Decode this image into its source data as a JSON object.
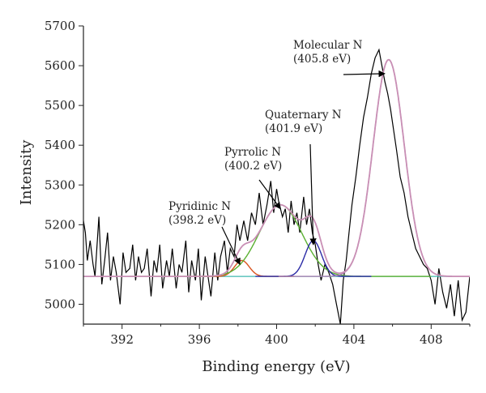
{
  "chart_data": {
    "type": "line",
    "title": "",
    "xlabel": "Binding energy (eV)",
    "ylabel": "Intensity",
    "xlim": [
      390,
      410
    ],
    "ylim": [
      4950,
      5700
    ],
    "x_ticks": [
      392,
      396,
      400,
      404,
      408
    ],
    "y_ticks": [
      5000,
      5100,
      5200,
      5300,
      5400,
      5500,
      5600,
      5700
    ],
    "grid": false,
    "legend": "none",
    "baseline": 5070,
    "raw_series": {
      "color": "#000000",
      "x": [
        390,
        390.1,
        390.2,
        390.35,
        390.5,
        390.6,
        390.8,
        390.95,
        391.1,
        391.25,
        391.4,
        391.55,
        391.7,
        391.9,
        392.05,
        392.2,
        392.4,
        392.55,
        392.7,
        392.85,
        393.0,
        393.15,
        393.3,
        393.5,
        393.65,
        393.8,
        393.95,
        394.1,
        394.3,
        394.45,
        394.6,
        394.8,
        394.95,
        395.1,
        395.3,
        395.45,
        395.6,
        395.8,
        395.95,
        396.1,
        396.3,
        396.45,
        396.6,
        396.8,
        396.95,
        397.1,
        397.3,
        397.45,
        397.6,
        397.8,
        397.95,
        398.1,
        398.3,
        398.5,
        398.7,
        398.9,
        399.1,
        399.3,
        399.5,
        399.7,
        399.85,
        400.0,
        400.1,
        400.3,
        400.45,
        400.6,
        400.75,
        400.9,
        401.05,
        401.2,
        401.4,
        401.55,
        401.7,
        401.85,
        402.0,
        402.15,
        402.3,
        402.5,
        402.7,
        402.9,
        403.1,
        403.3,
        403.45,
        403.6,
        403.75,
        403.9,
        404.1,
        404.3,
        404.5,
        404.7,
        404.9,
        405.1,
        405.3,
        405.45,
        405.6,
        405.75,
        405.9,
        406.05,
        406.2,
        406.4,
        406.6,
        406.8,
        407.0,
        407.2,
        407.4,
        407.6,
        407.8,
        408.0,
        408.2,
        408.4,
        408.6,
        408.8,
        409.0,
        409.2,
        409.4,
        409.6,
        409.8,
        410.0
      ],
      "y": [
        5210,
        5180,
        5110,
        5160,
        5100,
        5070,
        5220,
        5050,
        5110,
        5180,
        5060,
        5120,
        5080,
        5000,
        5130,
        5080,
        5090,
        5150,
        5060,
        5120,
        5080,
        5090,
        5140,
        5020,
        5110,
        5080,
        5150,
        5040,
        5110,
        5070,
        5140,
        5040,
        5100,
        5080,
        5160,
        5030,
        5110,
        5060,
        5140,
        5010,
        5120,
        5070,
        5020,
        5130,
        5060,
        5120,
        5160,
        5080,
        5140,
        5120,
        5200,
        5160,
        5210,
        5160,
        5230,
        5200,
        5280,
        5200,
        5250,
        5310,
        5230,
        5290,
        5260,
        5220,
        5240,
        5180,
        5260,
        5200,
        5230,
        5180,
        5270,
        5200,
        5240,
        5180,
        5150,
        5100,
        5060,
        5100,
        5080,
        5050,
        5000,
        4950,
        5060,
        5110,
        5180,
        5250,
        5320,
        5400,
        5470,
        5520,
        5580,
        5620,
        5640,
        5600,
        5560,
        5530,
        5490,
        5440,
        5390,
        5320,
        5280,
        5220,
        5180,
        5140,
        5120,
        5100,
        5090,
        5060,
        5000,
        5090,
        5030,
        4990,
        5050,
        4970,
        5060,
        4960,
        4980,
        5070
      ]
    },
    "fit_components": [
      {
        "name": "Pyridinic N (398.2 eV)",
        "center": 398.2,
        "height": 40,
        "fwhm": 0.9,
        "color": "#d9531e"
      },
      {
        "name": "Pyrrolic N (400.2 eV)",
        "center": 400.2,
        "height": 180,
        "fwhm": 2.6,
        "color": "#5ab031"
      },
      {
        "name": "Quaternary N (401.9 eV)",
        "center": 401.9,
        "height": 90,
        "fwhm": 1.0,
        "color": "#2b2ba6"
      },
      {
        "name": "Molecular N (405.8 eV)",
        "center": 405.8,
        "height": 545,
        "fwhm": 1.9,
        "color": "#a77fb0"
      }
    ],
    "envelope_color": "#c98fb5",
    "baseline_color": "#3fb8b0",
    "annotations": [
      {
        "line1": "Molecular N",
        "line2": "(405.8 eV)",
        "arrow_to": [
          405.6,
          5580
        ]
      },
      {
        "line1": "Quaternary N",
        "line2": "(401.9 eV)",
        "arrow_to": [
          401.9,
          5150
        ]
      },
      {
        "line1": "Pyrrolic N",
        "line2": "(400.2 eV)",
        "arrow_to": [
          400.2,
          5240
        ]
      },
      {
        "line1": "Pyridinic N",
        "line2": "(398.2 eV)",
        "arrow_to": [
          398.1,
          5100
        ]
      }
    ]
  }
}
